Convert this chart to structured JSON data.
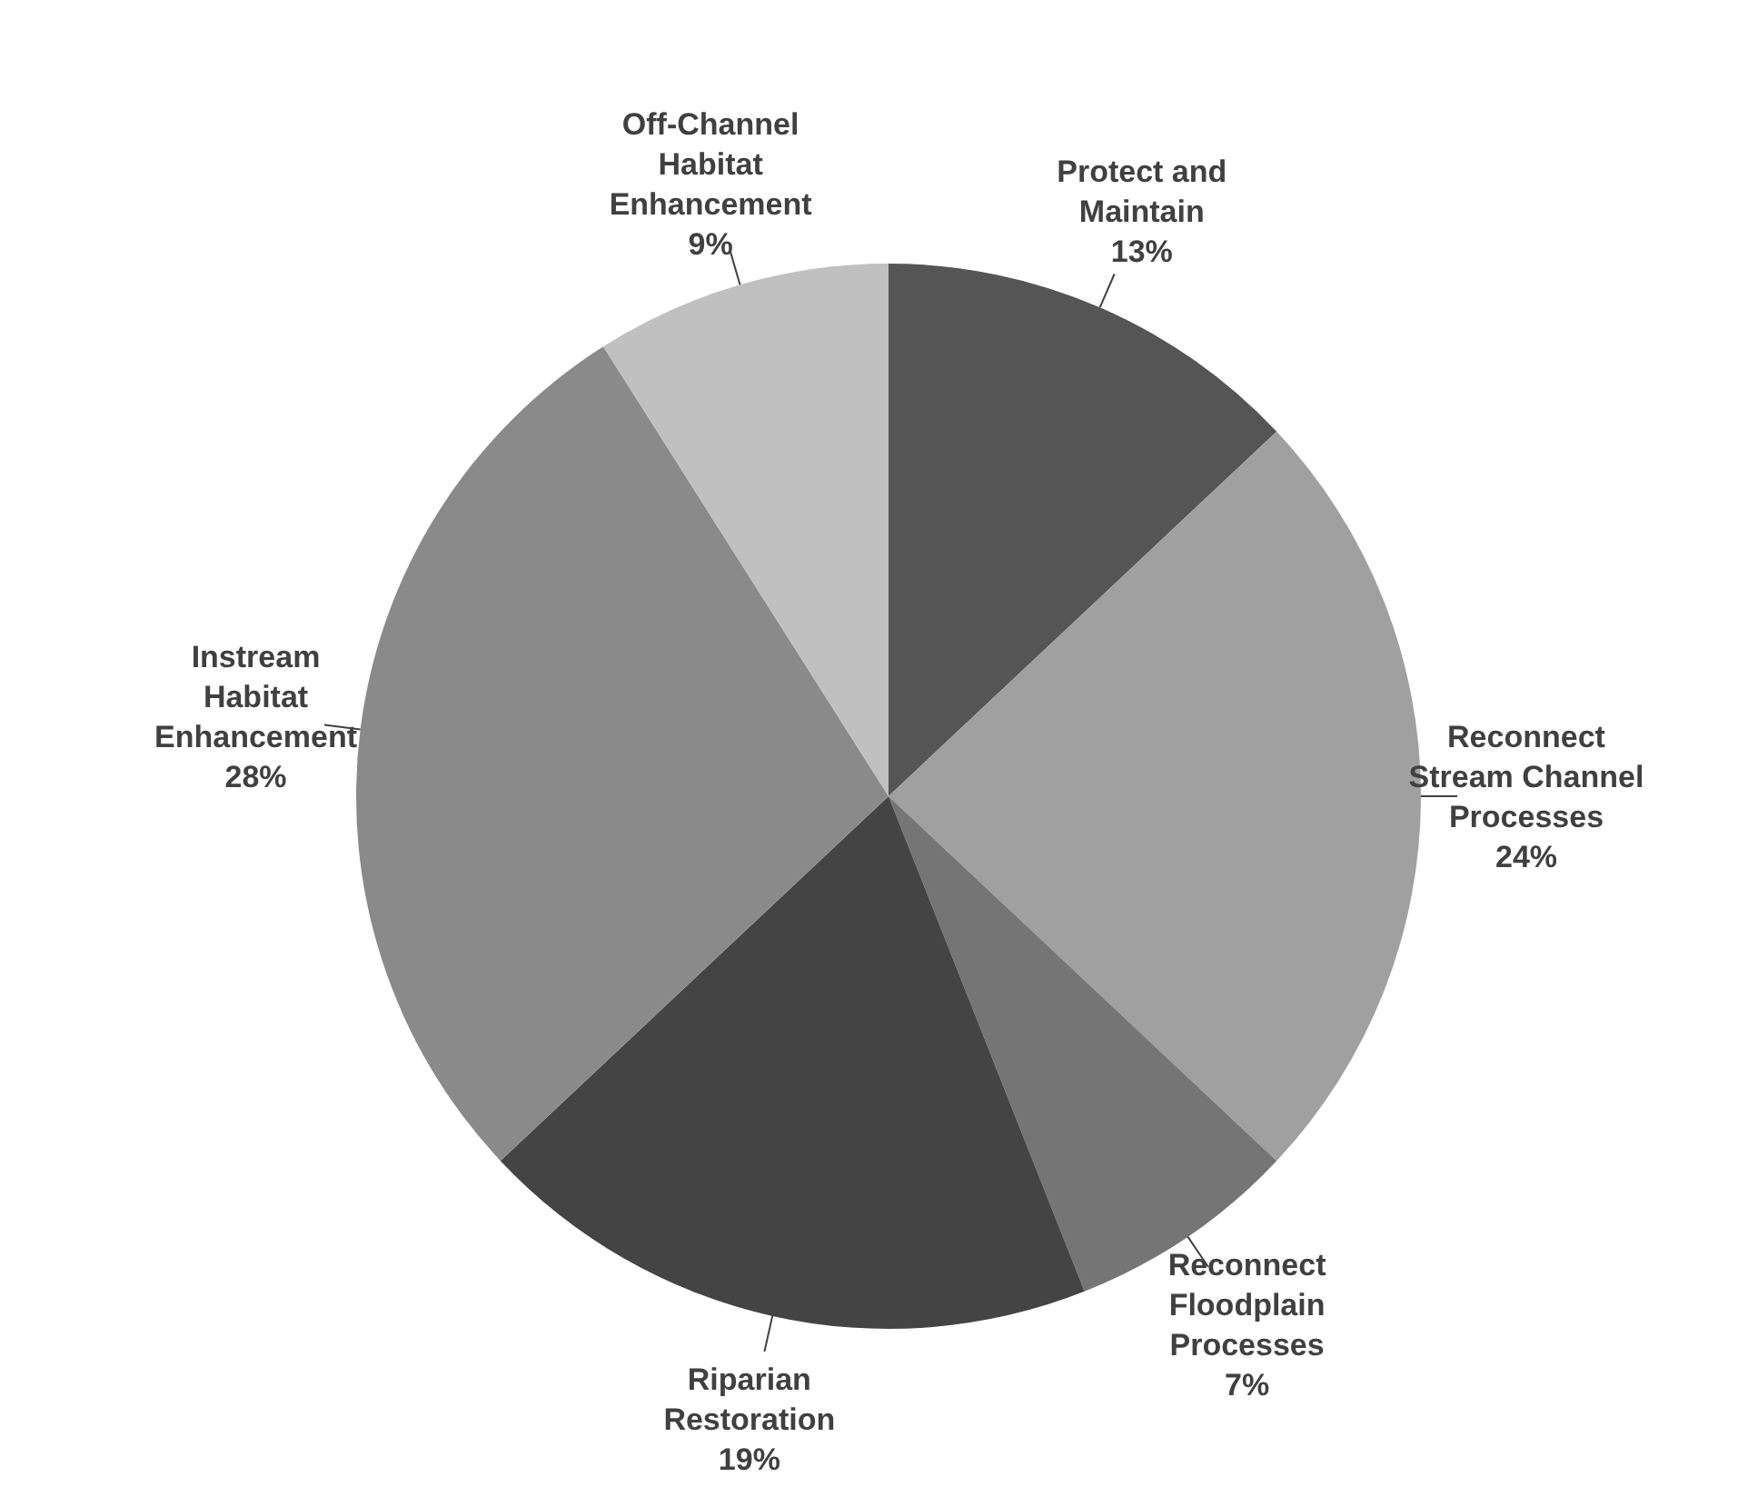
{
  "chart_data": {
    "type": "pie",
    "categories": [
      "Protect and Maintain",
      "Reconnect Stream Channel Processes",
      "Reconnect Floodplain Processes",
      "Riparian Restoration",
      "Instream Habitat Enhancement",
      "Off-Channel Habitat Enhancement"
    ],
    "values": [
      13,
      24,
      7,
      19,
      28,
      9
    ],
    "value_labels": [
      "13%",
      "24%",
      "7%",
      "19%",
      "28%",
      "9%"
    ],
    "colors": [
      "#555555",
      "#a0a0a0",
      "#757575",
      "#444444",
      "#8a8a8a",
      "#c0c0c0"
    ],
    "legend": false
  }
}
